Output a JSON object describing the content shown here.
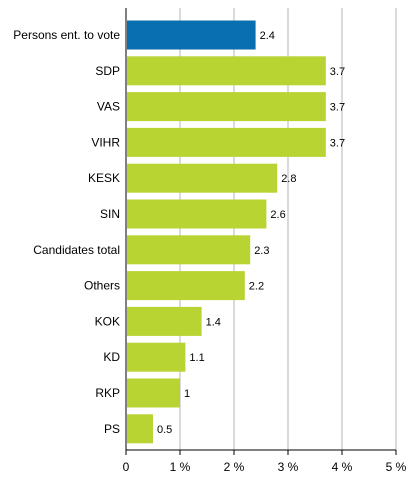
{
  "colors": {
    "highlight": "#0a6fb0",
    "bar": "#b7d433",
    "grid": "#b5b5b5",
    "axis": "#000000"
  },
  "chart_data": {
    "type": "bar",
    "orientation": "horizontal",
    "categories": [
      "Persons ent. to vote",
      "SDP",
      "VAS",
      "VIHR",
      "KESK",
      "SIN",
      "Candidates total",
      "Others",
      "KOK",
      "KD",
      "RKP",
      "PS"
    ],
    "values": [
      2.4,
      3.7,
      3.7,
      3.7,
      2.8,
      2.6,
      2.3,
      2.2,
      1.4,
      1.1,
      1,
      0.5
    ],
    "value_labels": [
      "2.4",
      "3.7",
      "3.7",
      "3.7",
      "2.8",
      "2.6",
      "2.3",
      "2.2",
      "1.4",
      "1.1",
      "1",
      "0.5"
    ],
    "highlighted_category": "Persons ent. to vote",
    "xlim": [
      0,
      5
    ],
    "xticks": [
      0,
      1,
      2,
      3,
      4,
      5
    ],
    "xtick_labels": [
      "0",
      "1 %",
      "2 %",
      "3 %",
      "4 %",
      "5 %"
    ],
    "grid": "vertical",
    "title": "",
    "xlabel": "",
    "ylabel": ""
  }
}
